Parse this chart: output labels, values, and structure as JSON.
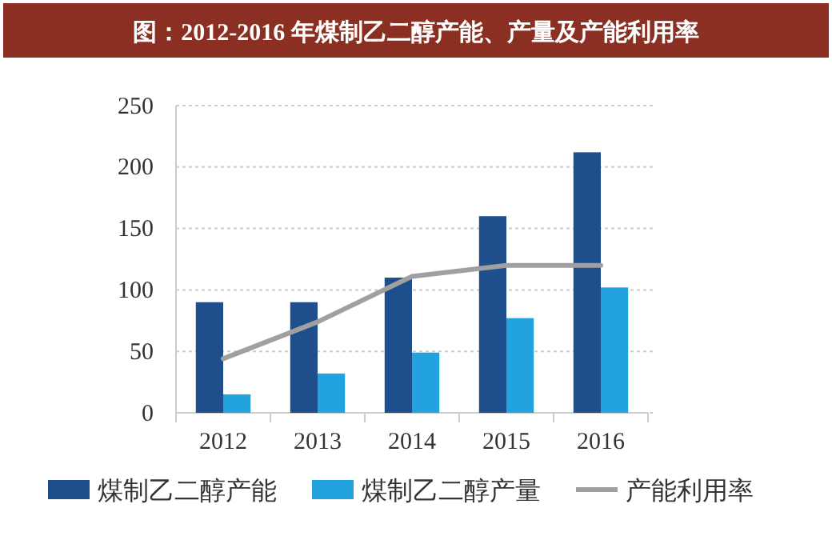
{
  "chart_data": {
    "type": "bar",
    "title": "图：2012-2016 年煤制乙二醇产能、产量及产能利用率",
    "categories": [
      "2012",
      "2013",
      "2014",
      "2015",
      "2016"
    ],
    "series": [
      {
        "name": "煤制乙二醇产能",
        "color": "#1f4e8c",
        "values": [
          90,
          90,
          110,
          160,
          212
        ]
      },
      {
        "name": "煤制乙二醇产量",
        "color": "#22a3e0",
        "values": [
          15,
          32,
          49,
          77,
          102
        ]
      },
      {
        "name": "产能利用率",
        "type": "line",
        "color": "#a0a0a0",
        "values": [
          44,
          74,
          111,
          120,
          120
        ]
      }
    ],
    "ylim": [
      0,
      250
    ],
    "yticks": [
      0,
      50,
      100,
      150,
      200,
      250
    ],
    "grid": "y",
    "legend": "bottom",
    "marker": "none",
    "line_style": "solid"
  }
}
